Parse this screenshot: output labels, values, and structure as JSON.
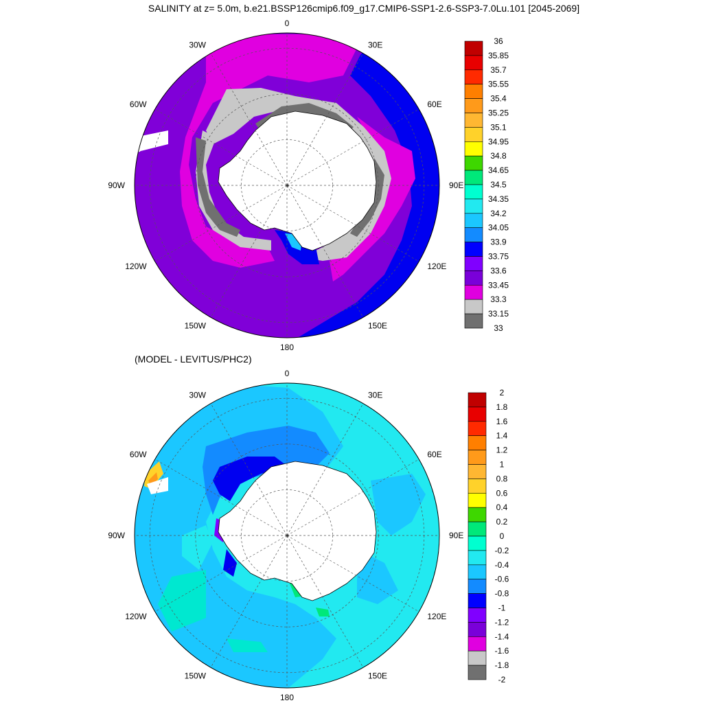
{
  "title": "SALINITY at z=   5.0m, b.e21.BSSP126cmip6.f09_g17.CMIP6-SSP1-2.6-SSP3-7.0Lu.101 [2045-2069]",
  "subtitle": "(MODEL - LEVITUS/PHC2)",
  "lon_labels": [
    "0",
    "30E",
    "60E",
    "90E",
    "120E",
    "150E",
    "180",
    "150W",
    "120W",
    "90W",
    "60W",
    "30W"
  ],
  "top_colorbar": {
    "labels": [
      "36",
      "35.85",
      "35.7",
      "35.55",
      "35.4",
      "35.25",
      "35.1",
      "34.95",
      "34.8",
      "34.65",
      "34.5",
      "34.35",
      "34.2",
      "34.05",
      "33.9",
      "33.75",
      "33.6",
      "33.45",
      "33.3",
      "33.15",
      "33"
    ],
    "colors": [
      "#c00000",
      "#e80000",
      "#ff2a00",
      "#ff7f00",
      "#ff9a1a",
      "#ffb732",
      "#ffd22a",
      "#ffff00",
      "#3ed700",
      "#00e87a",
      "#00ffd0",
      "#22e9f0",
      "#1bc7ff",
      "#138bff",
      "#0000ff",
      "#8000ff",
      "#7a00d9",
      "#e000e0",
      "#c8c8c8",
      "#707070"
    ]
  },
  "bottom_colorbar": {
    "labels": [
      "2",
      "1.8",
      "1.6",
      "1.4",
      "1.2",
      "1",
      "0.8",
      "0.6",
      "0.4",
      "0.2",
      "0",
      "-0.2",
      "-0.4",
      "-0.6",
      "-0.8",
      "-1",
      "-1.2",
      "-1.4",
      "-1.6",
      "-1.8",
      "-2"
    ],
    "colors": [
      "#c00000",
      "#e80000",
      "#ff2a00",
      "#ff7f00",
      "#ff9a1a",
      "#ffb732",
      "#ffd22a",
      "#ffff00",
      "#3ed700",
      "#00e87a",
      "#00ffd0",
      "#22e9f0",
      "#1bc7ff",
      "#138bff",
      "#0000ff",
      "#8000ff",
      "#7a00d9",
      "#e000e0",
      "#c8c8c8",
      "#707070"
    ]
  }
}
